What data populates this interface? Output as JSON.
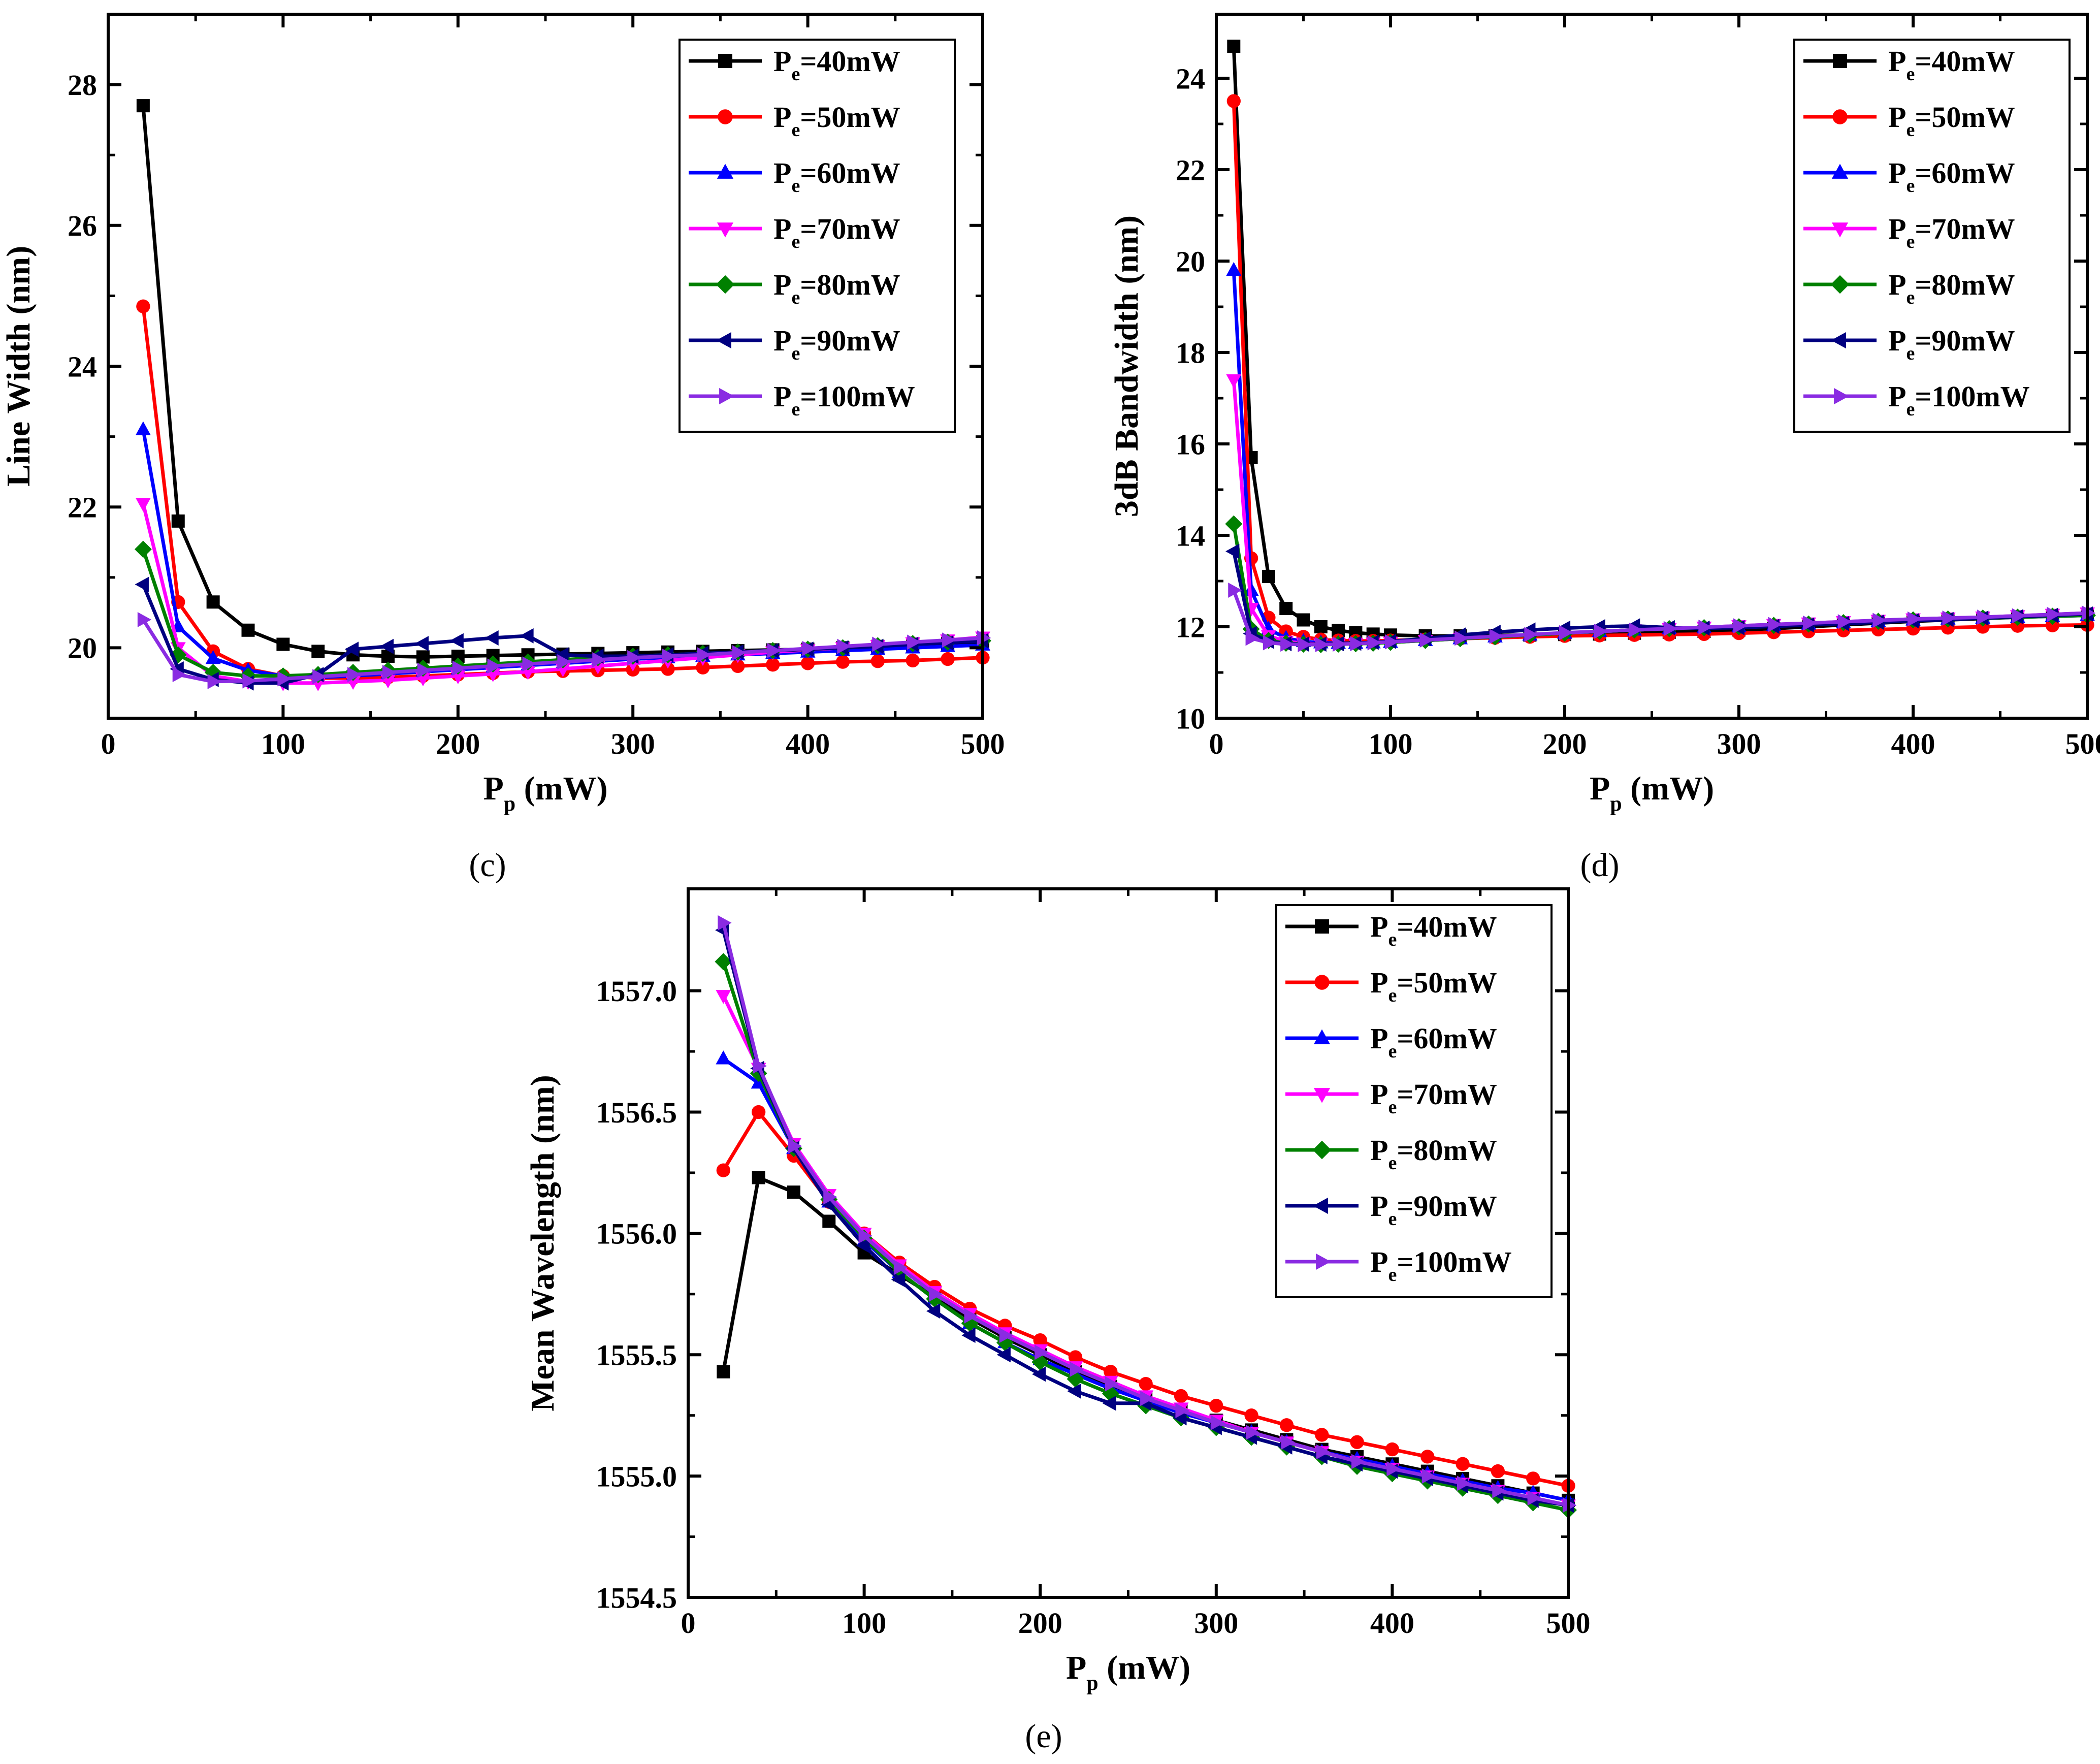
{
  "legend_labels": [
    "Pe=40mW",
    "Pe=50mW",
    "Pe=60mW",
    "Pe=70mW",
    "Pe=80mW",
    "Pe=90mW",
    "Pe=100mW"
  ],
  "series_colors": [
    "#000000",
    "#ff0000",
    "#0000ff",
    "#ff00ff",
    "#008000",
    "#000080",
    "#8a2be2"
  ],
  "series_markers": [
    "square",
    "circle",
    "triangle-up",
    "triangle-down",
    "diamond",
    "triangle-left",
    "triangle-right"
  ],
  "chart_data": [
    {
      "panel": "(c)",
      "type": "line",
      "xlabel": "Pp (mW)",
      "ylabel": "Line Width (nm)",
      "xlim": [
        0,
        500
      ],
      "ylim": [
        19,
        29
      ],
      "xticks": [
        0,
        100,
        200,
        300,
        400,
        500
      ],
      "yticks": [
        20,
        22,
        24,
        26,
        28
      ],
      "grid": false,
      "legend": "top-right",
      "x": [
        20,
        40,
        60,
        80,
        100,
        120,
        140,
        160,
        180,
        200,
        220,
        240,
        260,
        280,
        300,
        320,
        340,
        360,
        380,
        400,
        420,
        440,
        460,
        480,
        500
      ],
      "series": [
        {
          "name": "Pe=40mW",
          "values": [
            27.7,
            21.8,
            20.65,
            20.25,
            20.05,
            19.95,
            19.9,
            19.88,
            19.87,
            19.88,
            19.89,
            19.9,
            19.91,
            19.92,
            19.93,
            19.94,
            19.95,
            19.96,
            19.97,
            19.98,
            20.0,
            20.02,
            20.04,
            20.06,
            20.08
          ]
        },
        {
          "name": "Pe=50mW",
          "values": [
            24.85,
            20.65,
            19.95,
            19.7,
            19.6,
            19.57,
            19.57,
            19.58,
            19.6,
            19.62,
            19.64,
            19.66,
            19.67,
            19.68,
            19.69,
            19.7,
            19.72,
            19.74,
            19.76,
            19.78,
            19.8,
            19.81,
            19.82,
            19.84,
            19.86
          ]
        },
        {
          "name": "Pe=60mW",
          "values": [
            23.1,
            20.3,
            19.85,
            19.68,
            19.6,
            19.58,
            19.6,
            19.63,
            19.66,
            19.69,
            19.72,
            19.75,
            19.78,
            19.81,
            19.84,
            19.86,
            19.88,
            19.9,
            19.92,
            19.94,
            19.96,
            19.98,
            20.0,
            20.02,
            20.04
          ]
        },
        {
          "name": "Pe=70mW",
          "values": [
            22.05,
            20.0,
            19.6,
            19.52,
            19.5,
            19.5,
            19.52,
            19.54,
            19.57,
            19.6,
            19.63,
            19.66,
            19.7,
            19.74,
            19.78,
            19.82,
            19.86,
            19.9,
            19.94,
            19.97,
            20.0,
            20.03,
            20.07,
            20.11,
            20.15
          ]
        },
        {
          "name": "Pe=80mW",
          "values": [
            21.4,
            19.9,
            19.65,
            19.6,
            19.6,
            19.62,
            19.65,
            19.68,
            19.71,
            19.74,
            19.77,
            19.8,
            19.83,
            19.86,
            19.88,
            19.9,
            19.92,
            19.94,
            19.96,
            19.98,
            20.0,
            20.03,
            20.06,
            20.08,
            20.1
          ]
        },
        {
          "name": "Pe=90mW",
          "values": [
            20.9,
            19.7,
            19.55,
            19.5,
            19.5,
            19.62,
            19.98,
            20.02,
            20.06,
            20.1,
            20.14,
            20.17,
            19.9,
            19.88,
            19.88,
            19.9,
            19.92,
            19.94,
            19.96,
            19.98,
            20.0,
            20.02,
            20.05,
            20.07,
            20.1
          ]
        },
        {
          "name": "Pe=100mW",
          "values": [
            20.4,
            19.62,
            19.52,
            19.53,
            19.56,
            19.59,
            19.62,
            19.65,
            19.68,
            19.71,
            19.74,
            19.77,
            19.8,
            19.83,
            19.86,
            19.88,
            19.9,
            19.93,
            19.96,
            19.99,
            20.02,
            20.05,
            20.08,
            20.11,
            20.14
          ]
        }
      ]
    },
    {
      "panel": "(d)",
      "type": "line",
      "xlabel": "Pp (mW)",
      "ylabel": "3dB Bandwidth (nm)",
      "xlim": [
        0,
        500
      ],
      "ylim": [
        10,
        25.4
      ],
      "xticks": [
        0,
        100,
        200,
        300,
        400,
        500
      ],
      "yticks": [
        10,
        12,
        14,
        16,
        18,
        20,
        22,
        24
      ],
      "grid": false,
      "legend": "top-right",
      "x": [
        10,
        20,
        30,
        40,
        50,
        60,
        70,
        80,
        90,
        100,
        120,
        140,
        160,
        180,
        200,
        220,
        240,
        260,
        280,
        300,
        320,
        340,
        360,
        380,
        400,
        420,
        440,
        460,
        480,
        500
      ],
      "series": [
        {
          "name": "Pe=40mW",
          "values": [
            24.7,
            15.7,
            13.1,
            12.4,
            12.15,
            12.0,
            11.92,
            11.87,
            11.84,
            11.82,
            11.8,
            11.8,
            11.81,
            11.82,
            11.83,
            11.84,
            11.86,
            11.88,
            11.9,
            11.93,
            11.96,
            12.0,
            12.04,
            12.08,
            12.12,
            12.15,
            12.18,
            12.21,
            12.24,
            12.27
          ]
        },
        {
          "name": "Pe=50mW",
          "values": [
            23.5,
            13.5,
            12.2,
            11.9,
            11.78,
            11.72,
            11.7,
            11.69,
            11.69,
            11.7,
            11.72,
            11.74,
            11.76,
            11.78,
            11.8,
            11.81,
            11.82,
            11.83,
            11.84,
            11.86,
            11.88,
            11.9,
            11.92,
            11.94,
            11.96,
            11.98,
            12.0,
            12.02,
            12.03,
            12.04
          ]
        },
        {
          "name": "Pe=60mW",
          "values": [
            19.8,
            12.8,
            11.95,
            11.75,
            11.68,
            11.65,
            11.64,
            11.64,
            11.65,
            11.66,
            11.7,
            11.74,
            11.78,
            11.82,
            11.86,
            11.9,
            11.93,
            11.96,
            11.98,
            12.0,
            12.03,
            12.06,
            12.09,
            12.12,
            12.15,
            12.17,
            12.19,
            12.21,
            12.23,
            12.25
          ]
        },
        {
          "name": "Pe=70mW",
          "values": [
            17.4,
            12.4,
            11.8,
            11.68,
            11.64,
            11.62,
            11.62,
            11.63,
            11.64,
            11.66,
            11.7,
            11.74,
            11.78,
            11.82,
            11.86,
            11.9,
            11.93,
            11.96,
            11.99,
            12.02,
            12.05,
            12.08,
            12.11,
            12.14,
            12.17,
            12.19,
            12.21,
            12.24,
            12.27,
            12.3
          ]
        },
        {
          "name": "Pe=80mW",
          "values": [
            14.25,
            11.95,
            11.7,
            11.64,
            11.62,
            11.61,
            11.62,
            11.63,
            11.64,
            11.66,
            11.7,
            11.74,
            11.78,
            11.82,
            11.86,
            11.9,
            11.93,
            11.96,
            11.98,
            12.0,
            12.03,
            12.06,
            12.09,
            12.12,
            12.15,
            12.17,
            12.19,
            12.21,
            12.23,
            12.25
          ]
        },
        {
          "name": "Pe=90mW",
          "values": [
            13.65,
            11.85,
            11.68,
            11.63,
            11.62,
            11.62,
            11.63,
            11.64,
            11.66,
            11.68,
            11.74,
            11.82,
            11.88,
            11.93,
            11.97,
            12.0,
            12.02,
            11.98,
            11.97,
            11.98,
            12.01,
            12.04,
            12.07,
            12.1,
            12.13,
            12.16,
            12.19,
            12.22,
            12.25,
            12.28
          ]
        },
        {
          "name": "Pe=100mW",
          "values": [
            12.8,
            11.75,
            11.65,
            11.62,
            11.61,
            11.61,
            11.62,
            11.63,
            11.65,
            11.67,
            11.71,
            11.75,
            11.79,
            11.83,
            11.87,
            11.9,
            11.93,
            11.96,
            11.99,
            12.02,
            12.05,
            12.08,
            12.11,
            12.14,
            12.17,
            12.19,
            12.21,
            12.24,
            12.27,
            12.3
          ]
        }
      ]
    },
    {
      "panel": "(e)",
      "type": "line",
      "xlabel": "Pp (mW)",
      "ylabel": "Mean Wavelength (nm)",
      "xlim": [
        0,
        500
      ],
      "ylim": [
        1554.5,
        1557.42
      ],
      "xticks": [
        0,
        100,
        200,
        300,
        400,
        500
      ],
      "yticks": [
        1554.5,
        1555.0,
        1555.5,
        1556.0,
        1556.5,
        1557.0
      ],
      "ytick_labels": [
        "1554.5",
        "1555.0",
        "1555.5",
        "1556.0",
        "1556.5",
        "1557.0"
      ],
      "grid": false,
      "legend": "top-right",
      "x": [
        20,
        40,
        60,
        80,
        100,
        120,
        140,
        160,
        180,
        200,
        220,
        240,
        260,
        280,
        300,
        320,
        340,
        360,
        380,
        400,
        420,
        440,
        460,
        480,
        500
      ],
      "series": [
        {
          "name": "Pe=40mW",
          "values": [
            1555.43,
            1556.23,
            1556.17,
            1556.05,
            1555.92,
            1555.83,
            1555.74,
            1555.65,
            1555.57,
            1555.5,
            1555.43,
            1555.37,
            1555.32,
            1555.27,
            1555.23,
            1555.19,
            1555.15,
            1555.11,
            1555.08,
            1555.05,
            1555.02,
            1554.99,
            1554.96,
            1554.93,
            1554.9
          ]
        },
        {
          "name": "Pe=50mW",
          "values": [
            1556.26,
            1556.5,
            1556.32,
            1556.13,
            1556.0,
            1555.88,
            1555.78,
            1555.69,
            1555.62,
            1555.56,
            1555.49,
            1555.43,
            1555.38,
            1555.33,
            1555.29,
            1555.25,
            1555.21,
            1555.17,
            1555.14,
            1555.11,
            1555.08,
            1555.05,
            1555.02,
            1554.99,
            1554.96
          ]
        },
        {
          "name": "Pe=60mW",
          "values": [
            1556.72,
            1556.62,
            1556.35,
            1556.13,
            1555.97,
            1555.84,
            1555.73,
            1555.63,
            1555.55,
            1555.48,
            1555.42,
            1555.36,
            1555.31,
            1555.26,
            1555.22,
            1555.18,
            1555.14,
            1555.1,
            1555.07,
            1555.04,
            1555.01,
            1554.98,
            1554.95,
            1554.93,
            1554.9
          ]
        },
        {
          "name": "Pe=70mW",
          "values": [
            1556.98,
            1556.68,
            1556.37,
            1556.16,
            1556.0,
            1555.87,
            1555.76,
            1555.67,
            1555.59,
            1555.52,
            1555.45,
            1555.39,
            1555.33,
            1555.28,
            1555.23,
            1555.18,
            1555.14,
            1555.1,
            1555.06,
            1555.03,
            1555.0,
            1554.97,
            1554.94,
            1554.91,
            1554.88
          ]
        },
        {
          "name": "Pe=80mW",
          "values": [
            1557.12,
            1556.66,
            1556.35,
            1556.14,
            1555.98,
            1555.84,
            1555.73,
            1555.63,
            1555.55,
            1555.47,
            1555.4,
            1555.34,
            1555.29,
            1555.24,
            1555.2,
            1555.16,
            1555.12,
            1555.08,
            1555.04,
            1555.01,
            1554.98,
            1554.95,
            1554.92,
            1554.89,
            1554.86
          ]
        },
        {
          "name": "Pe=90mW",
          "values": [
            1557.25,
            1556.68,
            1556.35,
            1556.12,
            1555.95,
            1555.81,
            1555.68,
            1555.58,
            1555.5,
            1555.42,
            1555.35,
            1555.3,
            1555.3,
            1555.24,
            1555.2,
            1555.16,
            1555.12,
            1555.08,
            1555.05,
            1555.02,
            1554.99,
            1554.96,
            1554.93,
            1554.9,
            1554.88
          ]
        },
        {
          "name": "Pe=100mW",
          "values": [
            1557.28,
            1556.69,
            1556.36,
            1556.15,
            1555.99,
            1555.86,
            1555.75,
            1555.66,
            1555.58,
            1555.51,
            1555.44,
            1555.38,
            1555.32,
            1555.27,
            1555.22,
            1555.18,
            1555.14,
            1555.1,
            1555.06,
            1555.03,
            1555.0,
            1554.97,
            1554.94,
            1554.91,
            1554.88
          ]
        }
      ]
    }
  ]
}
